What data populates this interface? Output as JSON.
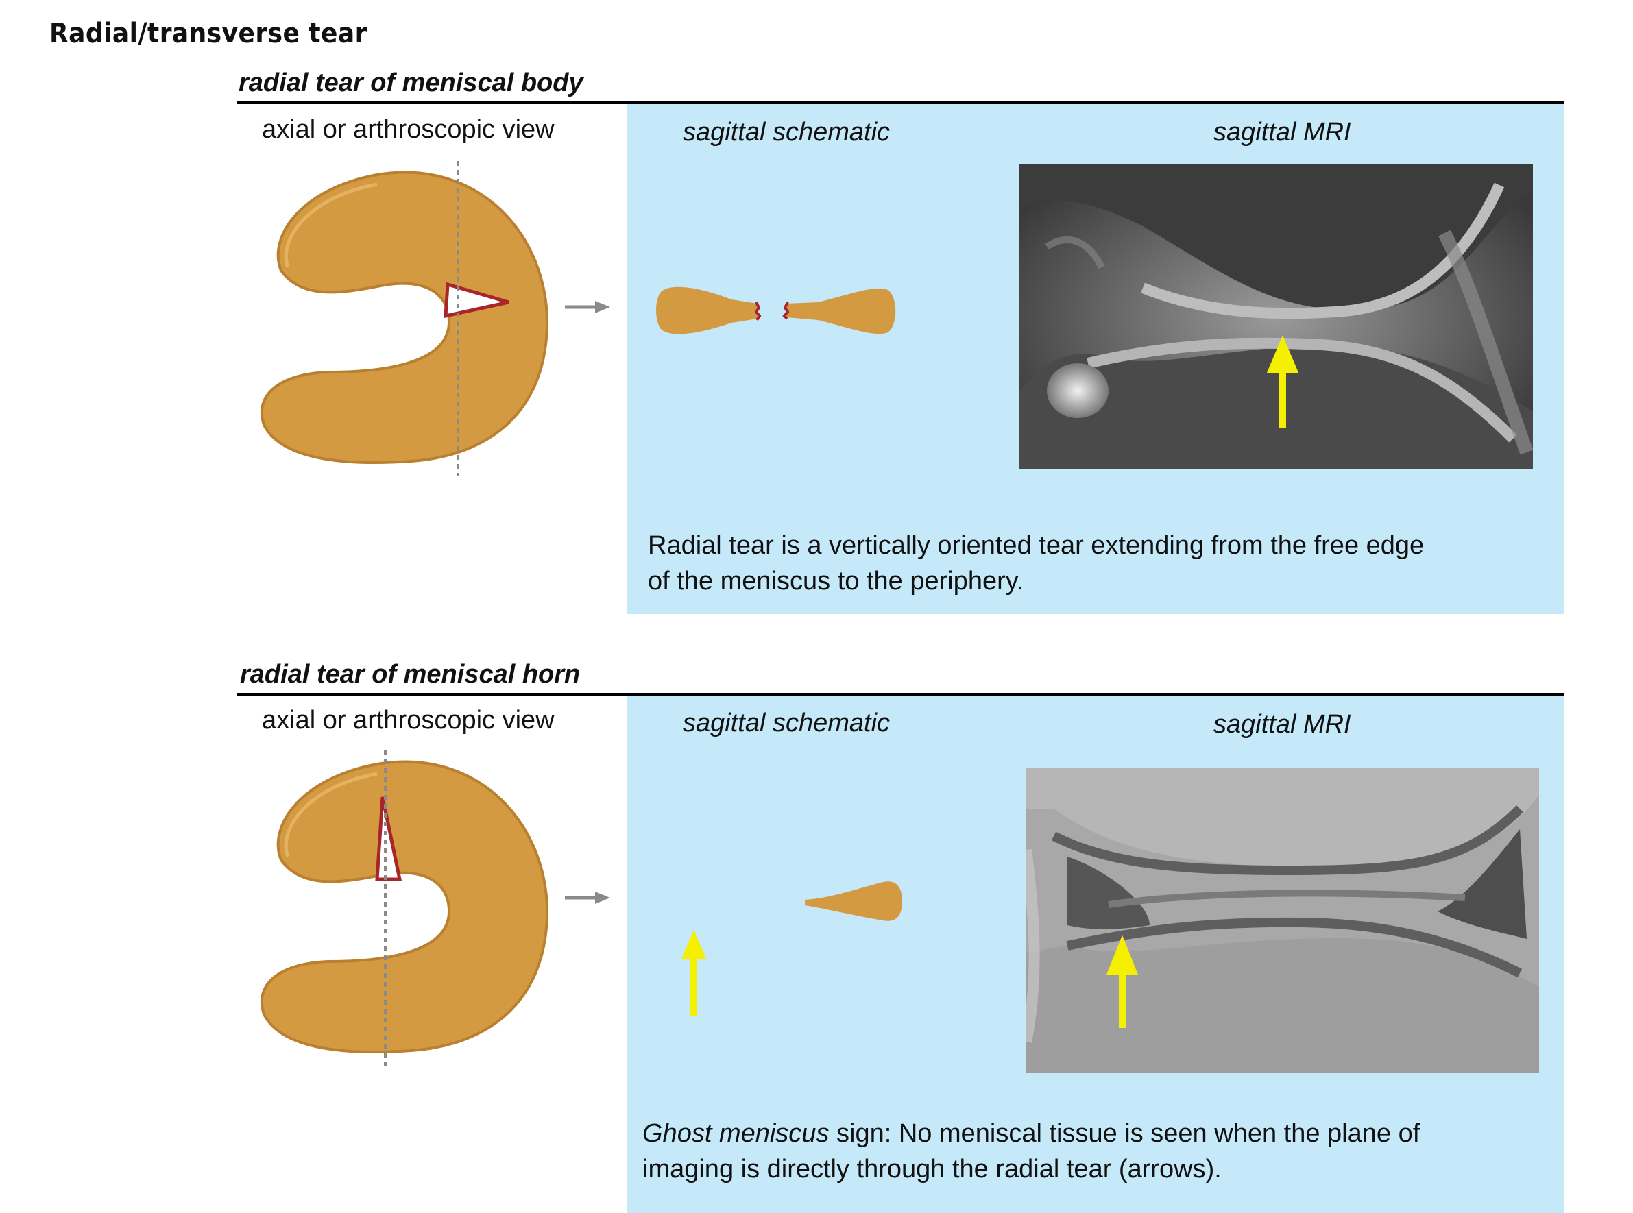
{
  "title": "Radial/transverse tear",
  "sections": [
    {
      "title": "radial tear of meniscal body",
      "axial_label": "axial or arthroscopic view",
      "schematic_label": "sagittal schematic",
      "mri_label": "sagittal MRI",
      "caption_line1": "Radial tear is a vertically oriented tear extending from the free edge",
      "caption_line2": "of the meniscus to the periphery."
    },
    {
      "title": "radial tear of meniscal horn",
      "axial_label": "axial or arthroscopic view",
      "schematic_label": "sagittal schematic",
      "mri_label": "sagittal MRI",
      "caption_em": "Ghost meniscus",
      "caption_line1_rest": " sign: No meniscal tissue is seen when the plane of",
      "caption_line2": "imaging is directly through the radial tear (arrows)."
    }
  ],
  "colors": {
    "panel": "#c5e9f9",
    "meniscus": "#d49a42",
    "tear": "#a8262a",
    "arrow": "#f5f000",
    "guide": "#8a8a8a"
  }
}
